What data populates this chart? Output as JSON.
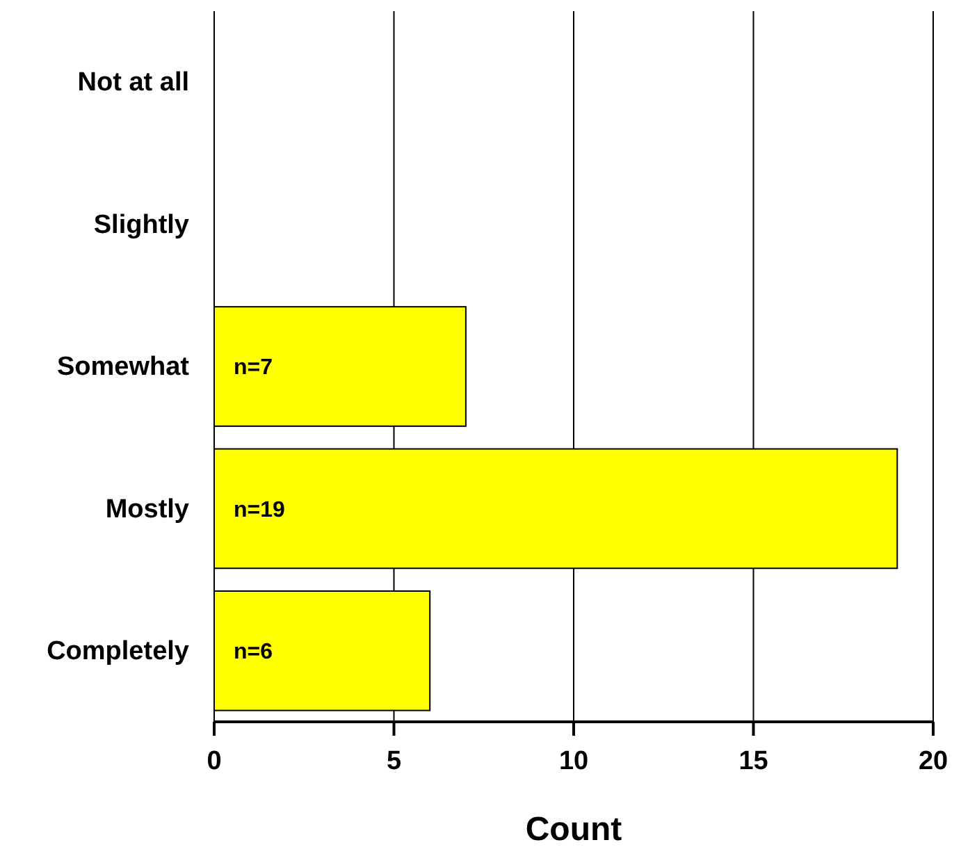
{
  "chart_data": {
    "type": "bar",
    "orientation": "horizontal",
    "categories": [
      "Not at all",
      "Slightly",
      "Somewhat",
      "Mostly",
      "Completely"
    ],
    "values": [
      0,
      0,
      7,
      19,
      6
    ],
    "value_labels": [
      null,
      null,
      "n=7",
      "n=19",
      "n=6"
    ],
    "color": "#ffff00",
    "xlabel": "Count",
    "xlim": [
      0,
      20
    ],
    "xticks": [
      0,
      5,
      10,
      15,
      20
    ],
    "grid": "x"
  }
}
